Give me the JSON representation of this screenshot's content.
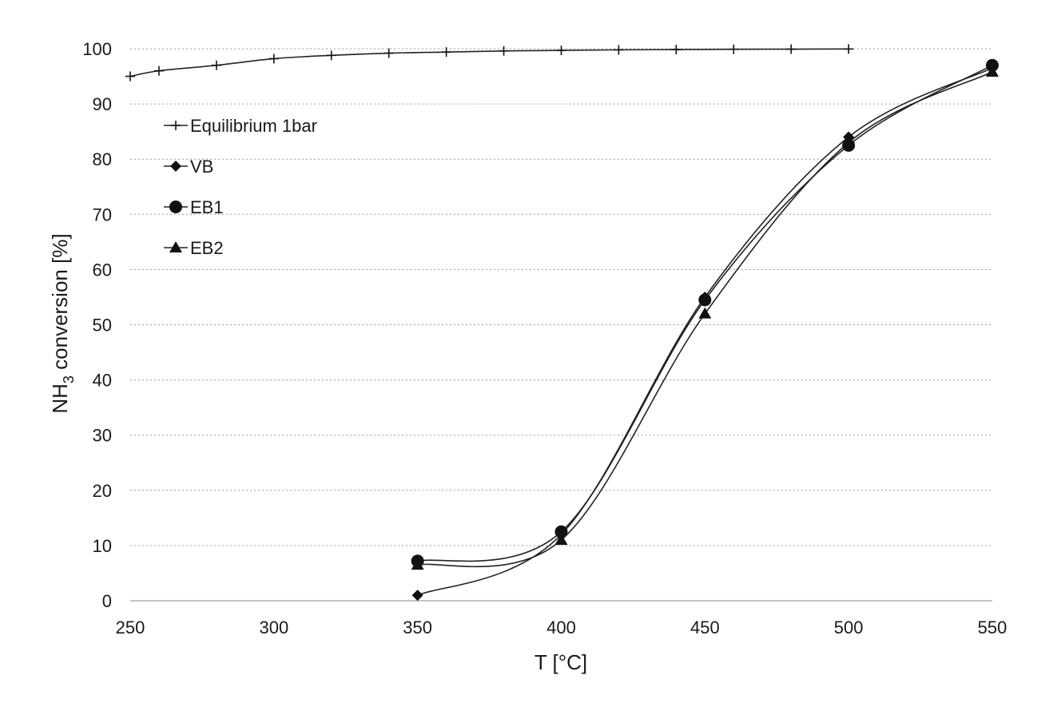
{
  "chart_data": {
    "type": "line",
    "title": "",
    "xlabel": "T [°C]",
    "ylabel_main": "NH",
    "ylabel_sub": "3",
    "ylabel_rest": " conversion [%]",
    "xlim": [
      250,
      550
    ],
    "ylim": [
      0,
      100
    ],
    "xticks": [
      250,
      300,
      350,
      400,
      450,
      500,
      550
    ],
    "yticks": [
      0,
      10,
      20,
      30,
      40,
      50,
      60,
      70,
      80,
      90,
      100
    ],
    "grid": "horizontal dotted",
    "legend_position": "top-left",
    "series": [
      {
        "name": "Equilibrium 1bar",
        "marker": "plus",
        "x": [
          250,
          260,
          280,
          300,
          320,
          340,
          360,
          380,
          400,
          420,
          440,
          460,
          480,
          500
        ],
        "y": [
          95,
          96,
          97,
          98.2,
          98.8,
          99.2,
          99.4,
          99.6,
          99.7,
          99.8,
          99.85,
          99.9,
          99.92,
          99.95
        ]
      },
      {
        "name": "VB",
        "marker": "diamond",
        "x": [
          350,
          400,
          450,
          500,
          550
        ],
        "y": [
          1,
          12,
          55,
          84,
          96.5
        ]
      },
      {
        "name": "EB1",
        "marker": "circle",
        "x": [
          350,
          400,
          450,
          500,
          550
        ],
        "y": [
          7.2,
          12.5,
          54.5,
          82.5,
          97
        ]
      },
      {
        "name": "EB2",
        "marker": "triangle",
        "x": [
          350,
          400,
          450,
          500,
          550
        ],
        "y": [
          6.5,
          11,
          52,
          83,
          95.8
        ]
      }
    ]
  }
}
